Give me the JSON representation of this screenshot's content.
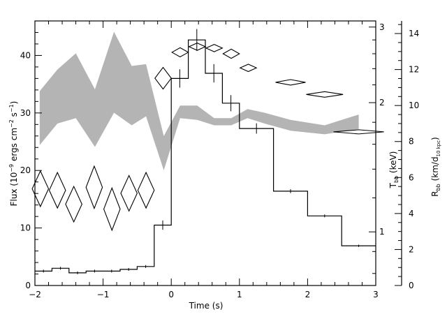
{
  "chart_data": {
    "type": "line",
    "xlabel": "Time (s)",
    "ylabel_left": "Flux (10⁻⁹ ergs cm⁻² s⁻¹)",
    "ylabel_right1": "Tₕₕ (keV)",
    "ylabel_right1_main": "T",
    "ylabel_right1_sub": "bb",
    "ylabel_right1_unit": " (keV)",
    "ylabel_right2_main": "R",
    "ylabel_right2_sub": "bb",
    "ylabel_right2_unit_pre": " (km/d",
    "ylabel_right2_unit_sub": "10 kpc",
    "ylabel_right2_unit_post": ")",
    "xlim": [
      -2,
      3
    ],
    "ylim_flux": [
      0,
      46
    ],
    "ylim_radius": [
      0,
      14.7
    ],
    "ylim_temperature_log": [
      0.75,
      3.1
    ],
    "x_ticks": [
      "−2",
      "−1",
      "0",
      "1",
      "2",
      "3"
    ],
    "x_tick_values": [
      -2,
      -1,
      0,
      1,
      2,
      3
    ],
    "flux_ticks": [
      "0",
      "10",
      "20",
      "30",
      "40"
    ],
    "flux_tick_values": [
      0,
      10,
      20,
      30,
      40
    ],
    "radius_ticks": [
      "0",
      "2",
      "4",
      "6",
      "8",
      "10",
      "12",
      "14"
    ],
    "radius_tick_values": [
      0,
      2,
      4,
      6,
      8,
      10,
      12,
      14
    ],
    "temperature_ticks": [
      "1",
      "2",
      "3"
    ],
    "temperature_tick_values": [
      1,
      2,
      3
    ],
    "series": [
      {
        "kind": "flux_histogram",
        "color": "#000000",
        "bins": [
          {
            "x0": -2.0,
            "x1": -1.75,
            "y": 2.5
          },
          {
            "x0": -1.75,
            "x1": -1.5,
            "y": 3.0
          },
          {
            "x0": -1.5,
            "x1": -1.25,
            "y": 2.2
          },
          {
            "x0": -1.25,
            "x1": -1.0,
            "y": 2.5
          },
          {
            "x0": -1.0,
            "x1": -0.75,
            "y": 2.5
          },
          {
            "x0": -0.75,
            "x1": -0.5,
            "y": 2.8
          },
          {
            "x0": -0.5,
            "x1": -0.25,
            "y": 3.3
          },
          {
            "x0": -0.25,
            "x1": 0.0,
            "y": 10.5
          },
          {
            "x0": 0.0,
            "x1": 0.25,
            "y": 36.0
          },
          {
            "x0": 0.25,
            "x1": 0.5,
            "y": 42.7
          },
          {
            "x0": 0.5,
            "x1": 0.75,
            "y": 36.9
          },
          {
            "x0": 0.75,
            "x1": 1.0,
            "y": 31.7
          },
          {
            "x0": 1.0,
            "x1": 1.5,
            "y": 27.3
          },
          {
            "x0": 1.5,
            "x1": 2.0,
            "y": 16.4
          },
          {
            "x0": 2.0,
            "x1": 2.5,
            "y": 12.1
          },
          {
            "x0": 2.5,
            "x1": 3.0,
            "y": 6.9
          }
        ],
        "errors": [
          0.25,
          0.25,
          0.25,
          0.25,
          0.25,
          0.25,
          0.25,
          0.8,
          1.6,
          1.9,
          1.6,
          1.4,
          0.9,
          0.35,
          0.25,
          0.2
        ]
      },
      {
        "kind": "radius_band",
        "color": "#b4b4b4",
        "x": [
          -1.93,
          -1.67,
          -1.4,
          -1.12,
          -0.84,
          -0.58,
          -0.37,
          -0.11,
          0.13,
          0.38,
          0.63,
          0.88,
          1.12,
          1.37,
          1.75,
          2.25,
          2.75
        ],
        "lower": [
          7.8,
          9.0,
          9.3,
          7.7,
          9.6,
          8.9,
          9.4,
          6.4,
          9.3,
          9.2,
          8.9,
          8.9,
          9.3,
          9.0,
          8.6,
          8.4,
          8.7
        ],
        "upper": [
          10.8,
          12.0,
          12.9,
          10.9,
          14.1,
          12.2,
          12.3,
          8.3,
          10.0,
          10.0,
          9.3,
          9.3,
          9.8,
          9.6,
          9.2,
          8.9,
          9.5
        ]
      },
      {
        "kind": "temperature_diamonds",
        "color": "#000000",
        "points": [
          {
            "x": -1.92,
            "t": 1.26,
            "xerr": 0.12,
            "terr_frac": 0.1
          },
          {
            "x": -1.67,
            "t": 1.25,
            "xerr": 0.12,
            "terr_frac": 0.1
          },
          {
            "x": -1.43,
            "t": 1.16,
            "xerr": 0.12,
            "terr_frac": 0.1
          },
          {
            "x": -1.13,
            "t": 1.27,
            "xerr": 0.12,
            "terr_frac": 0.12
          },
          {
            "x": -0.87,
            "t": 1.13,
            "xerr": 0.12,
            "terr_frac": 0.12
          },
          {
            "x": -0.62,
            "t": 1.23,
            "xerr": 0.12,
            "terr_frac": 0.1
          },
          {
            "x": -0.37,
            "t": 1.25,
            "xerr": 0.12,
            "terr_frac": 0.1
          },
          {
            "x": -0.12,
            "t": 2.28,
            "xerr": 0.12,
            "terr_frac": 0.06
          },
          {
            "x": 0.13,
            "t": 2.62,
            "xerr": 0.12,
            "terr_frac": 0.025
          },
          {
            "x": 0.38,
            "t": 2.7,
            "xerr": 0.12,
            "terr_frac": 0.02
          },
          {
            "x": 0.63,
            "t": 2.68,
            "xerr": 0.12,
            "terr_frac": 0.02
          },
          {
            "x": 0.88,
            "t": 2.6,
            "xerr": 0.12,
            "terr_frac": 0.025
          },
          {
            "x": 1.13,
            "t": 2.41,
            "xerr": 0.12,
            "terr_frac": 0.02
          },
          {
            "x": 1.75,
            "t": 2.23,
            "xerr": 0.22,
            "terr_frac": 0.015
          },
          {
            "x": 2.25,
            "t": 2.09,
            "xerr": 0.27,
            "terr_frac": 0.015
          },
          {
            "x": 2.75,
            "t": 1.71,
            "xerr": 0.37,
            "terr_frac": 0.01
          }
        ]
      }
    ]
  }
}
